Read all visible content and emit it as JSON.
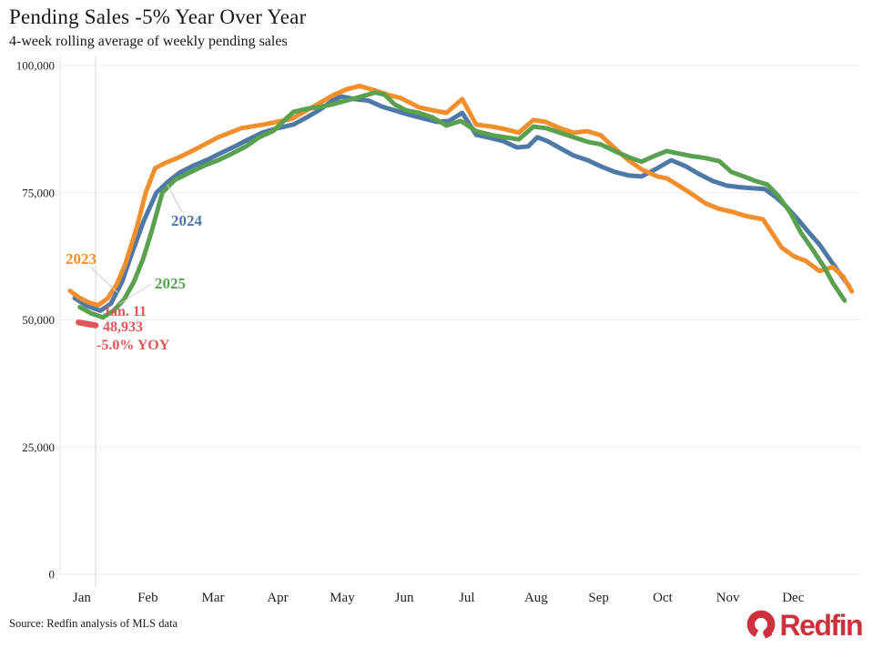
{
  "header": {
    "title": "Pending Sales -5% Year Over Year",
    "subtitle": "4-week rolling average of weekly pending sales"
  },
  "footer": {
    "source": "Source: Redfin analysis of MLS data",
    "logo_text": "Redfin"
  },
  "colors": {
    "orange_2023": "#F28E2B",
    "blue_2024": "#4E79A7",
    "green_2025": "#59A14F",
    "red_current": "#E15759",
    "grid": "#EBEBEB",
    "axis_line": "#E3E3E3",
    "ref_line": "#D6D6D6",
    "leader": "#CCCCCC",
    "axis_text": "#1F1F1F",
    "logo_red": "#CD313D"
  },
  "chart_data": {
    "type": "line",
    "title": "Pending Sales -5% Year Over Year",
    "subtitle": "4-week rolling average of weekly pending sales",
    "xlabel": "",
    "ylabel": "",
    "x_unit": "month-decimal (0 = Jan 1, 12 = Dec 31)",
    "ylim": [
      0,
      100000
    ],
    "yticks": [
      0,
      25000,
      50000,
      75000,
      100000
    ],
    "ytick_labels": [
      "0",
      "25,000",
      "50,000",
      "75,000",
      "100,000"
    ],
    "months": [
      "Jan",
      "Feb",
      "Mar",
      "Apr",
      "May",
      "Jun",
      "Jul",
      "Aug",
      "Sep",
      "Oct",
      "Nov",
      "Dec"
    ],
    "month_label_positions": [
      0.33,
      1.33,
      2.32,
      3.3,
      4.28,
      5.22,
      6.17,
      7.22,
      8.17,
      9.14,
      10.13,
      11.12
    ],
    "grid": "horizontal",
    "legend_position": "inline-labels",
    "ref_line_x": 0.54,
    "series": [
      {
        "name": "2023",
        "color": "#F28E2B",
        "points": [
          [
            0.15,
            55700
          ],
          [
            0.3,
            54300
          ],
          [
            0.44,
            53400
          ],
          [
            0.58,
            52900
          ],
          [
            0.72,
            54200
          ],
          [
            0.86,
            57000
          ],
          [
            0.99,
            61000
          ],
          [
            1.16,
            68000
          ],
          [
            1.3,
            75000
          ],
          [
            1.44,
            79800
          ],
          [
            1.6,
            80900
          ],
          [
            1.78,
            81800
          ],
          [
            2.06,
            83600
          ],
          [
            2.4,
            85900
          ],
          [
            2.75,
            87700
          ],
          [
            3.09,
            88400
          ],
          [
            3.51,
            89500
          ],
          [
            3.92,
            92500
          ],
          [
            4.13,
            94100
          ],
          [
            4.34,
            95300
          ],
          [
            4.54,
            96000
          ],
          [
            4.75,
            95200
          ],
          [
            4.96,
            94300
          ],
          [
            5.17,
            93600
          ],
          [
            5.44,
            91800
          ],
          [
            5.65,
            91200
          ],
          [
            5.86,
            90700
          ],
          [
            6.1,
            93400
          ],
          [
            6.31,
            88400
          ],
          [
            6.55,
            88000
          ],
          [
            6.75,
            87500
          ],
          [
            6.96,
            86800
          ],
          [
            7.18,
            89300
          ],
          [
            7.37,
            88900
          ],
          [
            7.58,
            87700
          ],
          [
            7.79,
            86800
          ],
          [
            8.0,
            87100
          ],
          [
            8.2,
            86300
          ],
          [
            8.41,
            83800
          ],
          [
            8.62,
            81400
          ],
          [
            8.82,
            79600
          ],
          [
            9.06,
            78200
          ],
          [
            9.21,
            77800
          ],
          [
            9.42,
            76100
          ],
          [
            9.61,
            74500
          ],
          [
            9.79,
            72900
          ],
          [
            10.0,
            71800
          ],
          [
            10.21,
            71200
          ],
          [
            10.41,
            70400
          ],
          [
            10.66,
            69800
          ],
          [
            10.83,
            66500
          ],
          [
            10.94,
            64300
          ],
          [
            11.13,
            62500
          ],
          [
            11.31,
            61600
          ],
          [
            11.52,
            59600
          ],
          [
            11.72,
            60400
          ],
          [
            11.88,
            58500
          ],
          [
            12.01,
            55600
          ]
        ]
      },
      {
        "name": "2024",
        "color": "#4E79A7",
        "points": [
          [
            0.22,
            54300
          ],
          [
            0.4,
            52800
          ],
          [
            0.61,
            51800
          ],
          [
            0.77,
            53200
          ],
          [
            0.94,
            57500
          ],
          [
            1.1,
            63500
          ],
          [
            1.27,
            69500
          ],
          [
            1.46,
            75000
          ],
          [
            1.64,
            77200
          ],
          [
            1.82,
            79000
          ],
          [
            2.02,
            80300
          ],
          [
            2.24,
            81500
          ],
          [
            2.44,
            82800
          ],
          [
            2.65,
            84100
          ],
          [
            2.86,
            85500
          ],
          [
            3.07,
            86800
          ],
          [
            3.3,
            87700
          ],
          [
            3.54,
            88400
          ],
          [
            3.74,
            89800
          ],
          [
            3.95,
            91400
          ],
          [
            4.14,
            93200
          ],
          [
            4.27,
            93900
          ],
          [
            4.47,
            93400
          ],
          [
            4.68,
            93100
          ],
          [
            4.89,
            91900
          ],
          [
            5.1,
            91100
          ],
          [
            5.3,
            90300
          ],
          [
            5.51,
            89600
          ],
          [
            5.72,
            88900
          ],
          [
            5.9,
            89100
          ],
          [
            6.1,
            90700
          ],
          [
            6.31,
            86400
          ],
          [
            6.52,
            85800
          ],
          [
            6.73,
            85100
          ],
          [
            6.93,
            83900
          ],
          [
            7.1,
            84100
          ],
          [
            7.24,
            85900
          ],
          [
            7.4,
            85100
          ],
          [
            7.58,
            83800
          ],
          [
            7.79,
            82300
          ],
          [
            8.0,
            81400
          ],
          [
            8.2,
            80200
          ],
          [
            8.41,
            79100
          ],
          [
            8.62,
            78400
          ],
          [
            8.82,
            78200
          ],
          [
            9.03,
            79600
          ],
          [
            9.27,
            81400
          ],
          [
            9.49,
            80200
          ],
          [
            9.69,
            78700
          ],
          [
            9.9,
            77300
          ],
          [
            10.11,
            76400
          ],
          [
            10.3,
            76100
          ],
          [
            10.49,
            75900
          ],
          [
            10.69,
            75700
          ],
          [
            10.85,
            74200
          ],
          [
            11.02,
            72200
          ],
          [
            11.19,
            69800
          ],
          [
            11.35,
            67300
          ],
          [
            11.52,
            64800
          ],
          [
            11.68,
            61800
          ],
          [
            11.85,
            58700
          ],
          [
            11.97,
            56600
          ]
        ]
      },
      {
        "name": "2025",
        "color": "#59A14F",
        "points": [
          [
            0.3,
            52500
          ],
          [
            0.47,
            51300
          ],
          [
            0.65,
            50500
          ],
          [
            0.81,
            51800
          ],
          [
            0.97,
            54000
          ],
          [
            1.12,
            57500
          ],
          [
            1.26,
            62000
          ],
          [
            1.39,
            67500
          ],
          [
            1.55,
            75000
          ],
          [
            1.74,
            77500
          ],
          [
            1.99,
            79100
          ],
          [
            2.2,
            80400
          ],
          [
            2.4,
            81400
          ],
          [
            2.61,
            82700
          ],
          [
            2.82,
            84100
          ],
          [
            3.02,
            85900
          ],
          [
            3.23,
            87100
          ],
          [
            3.4,
            89200
          ],
          [
            3.54,
            90900
          ],
          [
            3.74,
            91500
          ],
          [
            3.95,
            91900
          ],
          [
            4.14,
            92400
          ],
          [
            4.34,
            93100
          ],
          [
            4.54,
            93800
          ],
          [
            4.78,
            94700
          ],
          [
            4.92,
            94300
          ],
          [
            5.08,
            92300
          ],
          [
            5.25,
            91200
          ],
          [
            5.44,
            90700
          ],
          [
            5.65,
            89800
          ],
          [
            5.86,
            88200
          ],
          [
            6.08,
            89100
          ],
          [
            6.31,
            87100
          ],
          [
            6.55,
            86300
          ],
          [
            6.75,
            85900
          ],
          [
            6.96,
            85500
          ],
          [
            7.18,
            88000
          ],
          [
            7.37,
            87700
          ],
          [
            7.58,
            86800
          ],
          [
            7.79,
            85900
          ],
          [
            8.0,
            85000
          ],
          [
            8.2,
            84500
          ],
          [
            8.41,
            83200
          ],
          [
            8.62,
            82000
          ],
          [
            8.82,
            81100
          ],
          [
            9.03,
            82300
          ],
          [
            9.2,
            83200
          ],
          [
            9.38,
            82700
          ],
          [
            9.58,
            82200
          ],
          [
            9.79,
            81800
          ],
          [
            10.0,
            81200
          ],
          [
            10.18,
            79100
          ],
          [
            10.37,
            78200
          ],
          [
            10.55,
            77300
          ],
          [
            10.73,
            76600
          ],
          [
            10.9,
            74300
          ],
          [
            11.08,
            71000
          ],
          [
            11.24,
            67100
          ],
          [
            11.38,
            64500
          ],
          [
            11.59,
            60400
          ],
          [
            11.72,
            57300
          ],
          [
            11.9,
            53800
          ]
        ]
      },
      {
        "name": "current-year-to-Jan-11",
        "color": "#E15759",
        "points": [
          [
            0.28,
            49500
          ],
          [
            0.54,
            48933
          ]
        ]
      }
    ],
    "annotation": {
      "color": "#E15759",
      "lines": [
        "Jan. 11",
        "48,933",
        "-5.0% YOY"
      ],
      "latest_value": 48933,
      "latest_date": "Jan. 11",
      "yoy_change": "-5.0% YOY"
    },
    "series_labels": [
      {
        "text": "2023",
        "color": "#F28E2B"
      },
      {
        "text": "2024",
        "color": "#4E79A7"
      },
      {
        "text": "2025",
        "color": "#59A14F"
      }
    ]
  }
}
